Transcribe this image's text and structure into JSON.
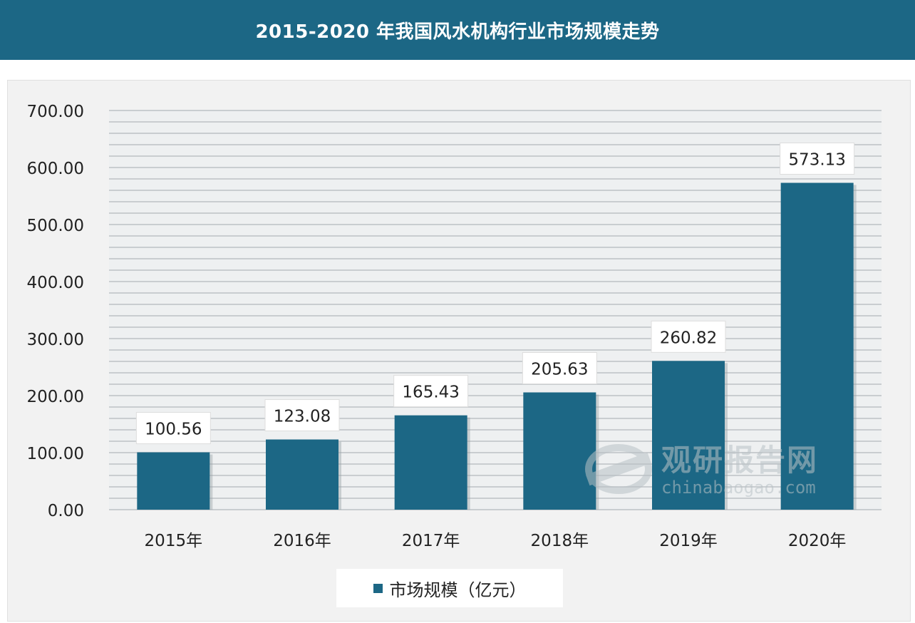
{
  "header": {
    "title": "2015-2020 年我国风水机构行业市场规模走势"
  },
  "chart_data": {
    "type": "bar",
    "title": "2015-2020 年我国风水机构行业市场规模走势",
    "categories": [
      "2015年",
      "2016年",
      "2017年",
      "2018年",
      "2019年",
      "2020年"
    ],
    "series": [
      {
        "name": "市场规模（亿元）",
        "values": [
          100.56,
          123.08,
          165.43,
          205.63,
          260.82,
          573.13
        ]
      }
    ],
    "data_labels": [
      "100.56",
      "123.08",
      "165.43",
      "205.63",
      "260.82",
      "573.13"
    ],
    "ylim": [
      0,
      700
    ],
    "yticks": [
      "0.00",
      "100.00",
      "200.00",
      "300.00",
      "400.00",
      "500.00",
      "600.00",
      "700.00"
    ],
    "xlabel": "",
    "ylabel": "",
    "grid": true,
    "legend_position": "bottom",
    "bar_color": "#1c6785"
  },
  "legend": {
    "label": "市场规模（亿元）"
  },
  "watermark": {
    "name_cn": "观研报告网",
    "site": "chinabaogao.com"
  },
  "colors": {
    "header_bg": "#1c6785",
    "bar": "#1c6785",
    "panel_bg": "#f2f2f2",
    "grid_line": "#c9cdd0"
  }
}
